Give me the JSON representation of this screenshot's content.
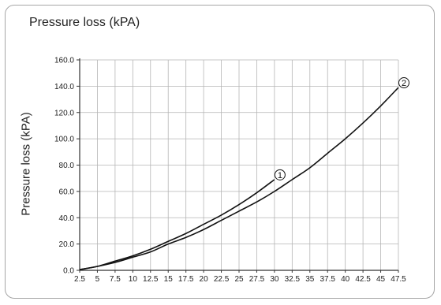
{
  "chart_data": {
    "type": "line",
    "title": "Pressure loss (kPA)",
    "ylabel": "Pressure loss (kPA)",
    "xlabel": "",
    "xlim": [
      2.5,
      47.5
    ],
    "ylim": [
      0,
      160
    ],
    "x_ticks": [
      "2.5",
      "5",
      "7.5",
      "10",
      "12.5",
      "15",
      "17.5",
      "20",
      "22.5",
      "25",
      "27.5",
      "30",
      "32.5",
      "35",
      "37.5",
      "40",
      "42.5",
      "45",
      "47.5"
    ],
    "y_ticks": [
      "0.0",
      "20.0",
      "40.0",
      "60.0",
      "80.0",
      "100.0",
      "120.0",
      "140.0",
      "160.0"
    ],
    "grid": true,
    "legend": "none",
    "series": [
      {
        "name": "①",
        "color": "#111111",
        "x": [
          2.5,
          5,
          7.5,
          10,
          12.5,
          15,
          17.5,
          20,
          22.5,
          25,
          27.5,
          30
        ],
        "y": [
          0.5,
          3,
          7,
          11,
          16,
          22,
          28,
          35,
          42,
          50,
          59,
          69
        ]
      },
      {
        "name": "②",
        "color": "#111111",
        "x": [
          2.5,
          5,
          7.5,
          10,
          12.5,
          15,
          17.5,
          20,
          22.5,
          25,
          27.5,
          30,
          32.5,
          35,
          37.5,
          40,
          42.5,
          45,
          47.5
        ],
        "y": [
          0.5,
          3,
          6,
          10,
          14,
          20,
          25,
          31,
          38,
          45,
          52,
          60,
          69,
          78,
          89,
          100,
          112,
          125,
          139
        ]
      }
    ]
  }
}
